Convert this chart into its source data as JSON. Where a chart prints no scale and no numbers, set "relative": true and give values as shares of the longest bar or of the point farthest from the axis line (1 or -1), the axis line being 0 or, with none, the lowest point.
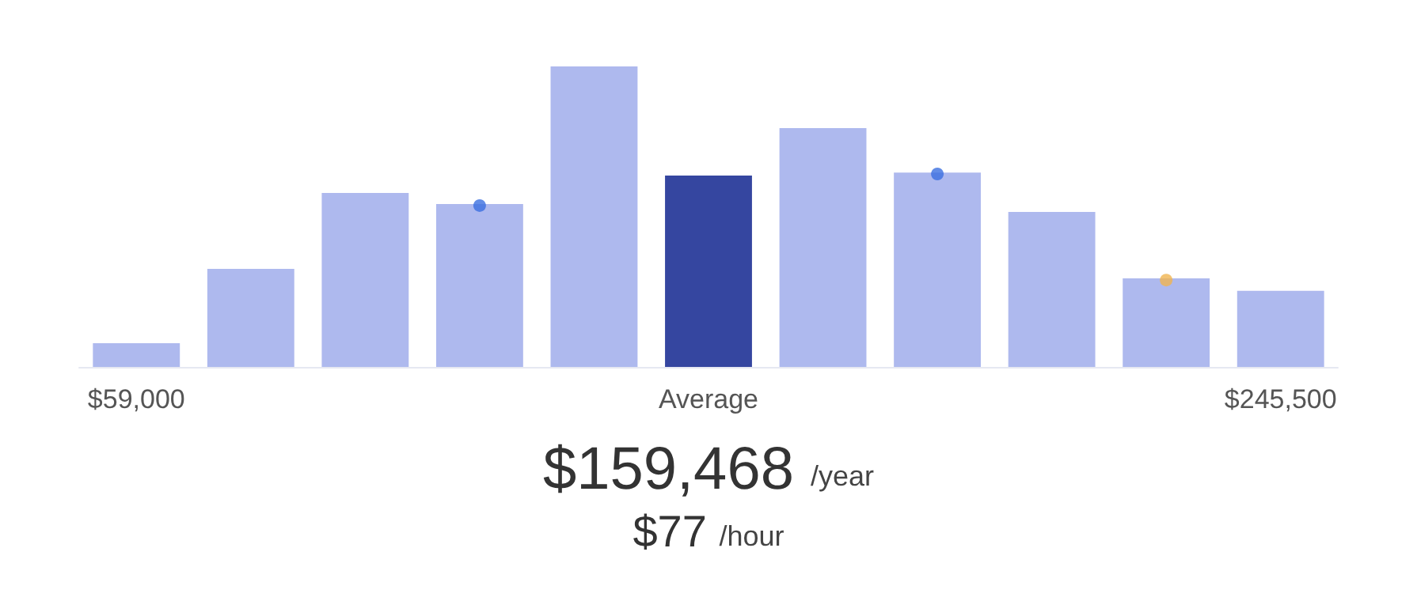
{
  "chart_data": {
    "type": "bar",
    "relative": true,
    "categories": [
      "$59,000",
      null,
      null,
      null,
      null,
      "Average",
      null,
      null,
      null,
      null,
      "$245,500"
    ],
    "series": [
      {
        "values": [
          0.079,
          0.326,
          0.579,
          0.542,
          1,
          0.637,
          0.795,
          0.647,
          0.516,
          0.295,
          0.253
        ],
        "colors": [
          "#aeb9ee",
          "#aeb9ee",
          "#aeb9ee",
          "#aeb9ee",
          "#aeb9ee",
          "#3546a0",
          "#aeb9ee",
          "#aeb9ee",
          "#aeb9ee",
          "#aeb9ee",
          "#aeb9ee"
        ]
      },
      {
        "type": "scatter",
        "values": [
          null,
          null,
          null,
          0.537,
          null,
          null,
          null,
          0.642,
          null,
          0.289,
          null
        ],
        "colors": [
          null,
          null,
          null,
          "#3b6fe0",
          null,
          null,
          null,
          "#3b6fe0",
          null,
          "#f0b450",
          null
        ]
      }
    ],
    "annotations": [
      "$159,468 /year",
      "$77 /hour"
    ]
  }
}
